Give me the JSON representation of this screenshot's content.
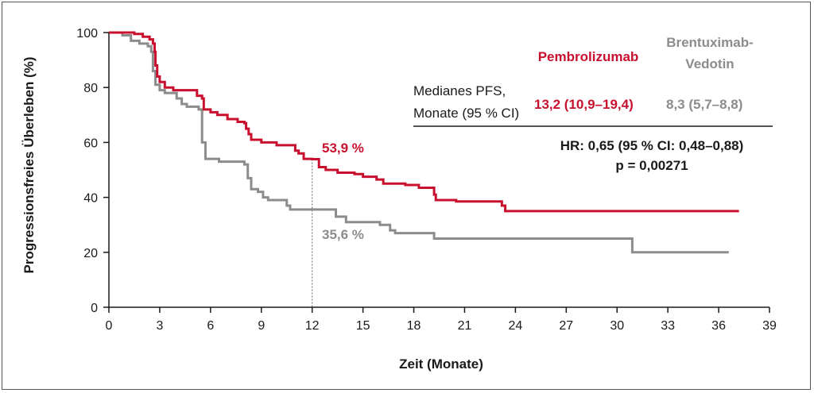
{
  "chart_data": {
    "type": "line",
    "xlabel": "Zeit (Monate)",
    "ylabel": "Progressionsfreies Überleben (%)",
    "xlim": [
      0,
      39
    ],
    "ylim": [
      0,
      100
    ],
    "xticks": [
      "0",
      "3",
      "6",
      "9",
      "12",
      "15",
      "18",
      "21",
      "24",
      "27",
      "30",
      "33",
      "36",
      "39"
    ],
    "yticks": [
      "0",
      "20",
      "40",
      "60",
      "80",
      "100"
    ],
    "colors": {
      "pembrolizumab": "#c8102e",
      "brentuximab": "#8c8c8c",
      "text": "#1a1a1a"
    },
    "series": [
      {
        "name": "Pembrolizumab",
        "step": [
          [
            0,
            100
          ],
          [
            1.5,
            99.5
          ],
          [
            2,
            98.5
          ],
          [
            2.4,
            97.5
          ],
          [
            2.6,
            96
          ],
          [
            2.7,
            93
          ],
          [
            2.75,
            88
          ],
          [
            2.85,
            84
          ],
          [
            3,
            82
          ],
          [
            3.3,
            80
          ],
          [
            3.8,
            79
          ],
          [
            5.2,
            77
          ],
          [
            5.5,
            76
          ],
          [
            5.6,
            72
          ],
          [
            6,
            71
          ],
          [
            6.4,
            70
          ],
          [
            7,
            68.5
          ],
          [
            7.6,
            67.5
          ],
          [
            8,
            67
          ],
          [
            8.1,
            65
          ],
          [
            8.25,
            63
          ],
          [
            8.4,
            61
          ],
          [
            9,
            60
          ],
          [
            9.9,
            59
          ],
          [
            11,
            57
          ],
          [
            11.2,
            56
          ],
          [
            11.5,
            54
          ],
          [
            12,
            53.9
          ],
          [
            12.4,
            51
          ],
          [
            12.8,
            50
          ],
          [
            13.5,
            49
          ],
          [
            14.5,
            48.5
          ],
          [
            15,
            47.5
          ],
          [
            15.8,
            46.5
          ],
          [
            16.2,
            45
          ],
          [
            17.5,
            44.5
          ],
          [
            18.3,
            43.5
          ],
          [
            19.2,
            41
          ],
          [
            19.3,
            39
          ],
          [
            20.5,
            38.5
          ],
          [
            23.2,
            37
          ],
          [
            23.4,
            35
          ],
          [
            37.2,
            35
          ]
        ]
      },
      {
        "name": "Brentuximab-Vedotin",
        "step": [
          [
            0,
            100
          ],
          [
            0.8,
            99
          ],
          [
            1.3,
            97
          ],
          [
            1.8,
            96
          ],
          [
            2.3,
            95
          ],
          [
            2.5,
            93
          ],
          [
            2.6,
            86
          ],
          [
            2.75,
            81
          ],
          [
            3,
            79
          ],
          [
            3.3,
            78
          ],
          [
            4,
            76
          ],
          [
            4.3,
            74
          ],
          [
            4.6,
            73
          ],
          [
            5.3,
            72
          ],
          [
            5.5,
            60
          ],
          [
            5.7,
            54
          ],
          [
            6.5,
            53
          ],
          [
            8,
            52
          ],
          [
            8.2,
            47
          ],
          [
            8.4,
            43
          ],
          [
            8.8,
            42
          ],
          [
            9.1,
            40
          ],
          [
            9.4,
            39
          ],
          [
            10.5,
            37
          ],
          [
            10.7,
            35.6
          ],
          [
            13.4,
            33
          ],
          [
            14,
            31
          ],
          [
            16,
            30
          ],
          [
            16.6,
            28
          ],
          [
            16.9,
            27
          ],
          [
            19.2,
            25
          ],
          [
            30.8,
            25
          ],
          [
            30.9,
            20
          ],
          [
            36.6,
            20
          ]
        ]
      }
    ],
    "annotations": {
      "value_at_12": "12",
      "pembro_label": "53,9 %",
      "brentux_label": "35,6 %"
    }
  },
  "legend": {
    "pembro_title": "Pembrolizumab",
    "brentux_title_line1": "Brentuximab-",
    "brentux_title_line2": "Vedotin",
    "row_label_line1": "Medianes PFS,",
    "row_label_line2": "Monate (95 % CI)",
    "pembro_value": "13,2 (10,9–19,4)",
    "brentux_value": "8,3 (5,7–8,8)",
    "hr_text": "HR: 0,65 (95 % CI: 0,48–0,88)",
    "p_text": "p = 0,00271"
  }
}
